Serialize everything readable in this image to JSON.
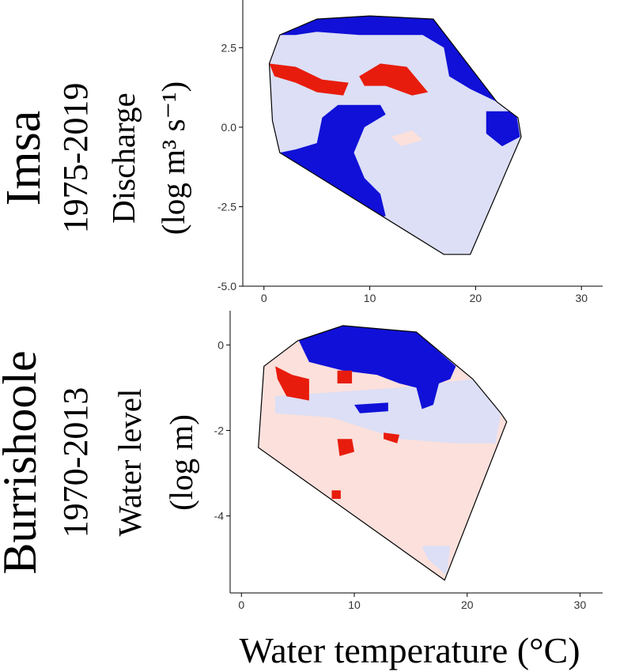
{
  "figure": {
    "xlabel": "Water temperature (°C)"
  },
  "colors": {
    "high": "#1010d8",
    "low": "#e81c0c",
    "pale_blue": "#dcdff5",
    "pale_red": "#fbe0dc"
  },
  "chart_data": [
    {
      "type": "heatmap",
      "site": "Imsa",
      "period": "1975-2019",
      "ylabel_line1": "Discharge",
      "ylabel_line2": "(log m³ s⁻¹)",
      "xlim": [
        -2,
        32
      ],
      "ylim": [
        -5,
        4
      ],
      "x_ticks": [
        "0",
        "10",
        "20",
        "30"
      ],
      "y_ticks": [
        "-5.0",
        "-2.5",
        "0.0",
        "2.5"
      ],
      "hull": [
        [
          0.5,
          2.0
        ],
        [
          1.5,
          2.9
        ],
        [
          5.0,
          3.4
        ],
        [
          10.0,
          3.5
        ],
        [
          16.0,
          3.4
        ],
        [
          22.0,
          0.8
        ],
        [
          24.0,
          0.3
        ],
        [
          24.3,
          -0.3
        ],
        [
          19.5,
          -4.0
        ],
        [
          17.0,
          -4.0
        ],
        [
          1.5,
          -0.8
        ],
        [
          0.8,
          0.2
        ]
      ],
      "background": "pale_blue",
      "regions": [
        {
          "color": "high",
          "points": [
            [
              1.5,
              2.9
            ],
            [
              5.0,
              3.4
            ],
            [
              10.0,
              3.5
            ],
            [
              16.0,
              3.4
            ],
            [
              22.0,
              0.8
            ],
            [
              19.5,
              1.2
            ],
            [
              17.5,
              1.6
            ],
            [
              17.0,
              2.5
            ],
            [
              15.0,
              2.9
            ],
            [
              9.0,
              2.9
            ],
            [
              5.0,
              3.0
            ],
            [
              3.0,
              2.9
            ],
            [
              1.5,
              2.9
            ]
          ]
        },
        {
          "color": "high",
          "points": [
            [
              5.0,
              -0.5
            ],
            [
              5.5,
              0.3
            ],
            [
              7.0,
              0.7
            ],
            [
              11.0,
              0.7
            ],
            [
              11.5,
              0.4
            ],
            [
              9.5,
              0.0
            ],
            [
              8.5,
              -0.8
            ],
            [
              9.5,
              -1.6
            ],
            [
              11.0,
              -2.1
            ],
            [
              11.5,
              -2.8
            ],
            [
              10.0,
              -2.8
            ],
            [
              8.0,
              -2.2
            ],
            [
              5.0,
              -1.6
            ],
            [
              1.5,
              -0.8
            ],
            [
              3.0,
              -0.7
            ]
          ]
        },
        {
          "color": "high",
          "points": [
            [
              21.0,
              0.5
            ],
            [
              23.8,
              0.5
            ],
            [
              24.2,
              -0.3
            ],
            [
              22.5,
              -0.6
            ],
            [
              21.0,
              -0.2
            ]
          ]
        },
        {
          "color": "low",
          "points": [
            [
              0.5,
              2.0
            ],
            [
              3.0,
              1.9
            ],
            [
              5.5,
              1.5
            ],
            [
              8.0,
              1.4
            ],
            [
              7.5,
              1.0
            ],
            [
              5.0,
              1.1
            ],
            [
              3.0,
              1.4
            ],
            [
              1.0,
              1.6
            ]
          ]
        },
        {
          "color": "low",
          "points": [
            [
              9.0,
              1.6
            ],
            [
              11.0,
              2.0
            ],
            [
              13.5,
              1.9
            ],
            [
              15.5,
              1.1
            ],
            [
              14.0,
              1.0
            ],
            [
              11.5,
              1.3
            ],
            [
              9.5,
              1.3
            ]
          ]
        },
        {
          "color": "pale_red",
          "points": [
            [
              12.0,
              -0.3
            ],
            [
              14.0,
              -0.1
            ],
            [
              15.0,
              -0.4
            ],
            [
              13.0,
              -0.6
            ]
          ]
        }
      ]
    },
    {
      "type": "heatmap",
      "site": "Burrishoole",
      "period": "1970-2013",
      "ylabel_line1": "Water level",
      "ylabel_line2": "(log m)",
      "xlim": [
        -1,
        32
      ],
      "ylim": [
        -5.8,
        0.8
      ],
      "x_ticks": [
        "0",
        "10",
        "20",
        "30"
      ],
      "y_ticks": [
        "-4",
        "-2",
        "0"
      ],
      "hull": [
        [
          1.5,
          -2.4
        ],
        [
          2.0,
          -0.5
        ],
        [
          5.0,
          0.1
        ],
        [
          9.0,
          0.45
        ],
        [
          15.5,
          0.3
        ],
        [
          20.5,
          -0.8
        ],
        [
          23.0,
          -1.6
        ],
        [
          23.5,
          -1.8
        ],
        [
          18.0,
          -5.5
        ],
        [
          1.5,
          -2.4
        ]
      ],
      "background": "pale_red",
      "regions": [
        {
          "color": "pale_blue",
          "points": [
            [
              3.0,
              -1.2
            ],
            [
              14.0,
              -1.0
            ],
            [
              20.5,
              -0.8
            ],
            [
              23.0,
              -1.6
            ],
            [
              22.5,
              -2.3
            ],
            [
              19.0,
              -2.3
            ],
            [
              14.0,
              -2.2
            ],
            [
              8.0,
              -1.7
            ],
            [
              3.0,
              -1.6
            ]
          ]
        },
        {
          "color": "high",
          "points": [
            [
              5.0,
              0.15
            ],
            [
              9.0,
              0.45
            ],
            [
              15.5,
              0.3
            ],
            [
              19.0,
              -0.5
            ],
            [
              18.5,
              -0.8
            ],
            [
              17.5,
              -0.9
            ],
            [
              17.0,
              -1.4
            ],
            [
              16.0,
              -1.5
            ],
            [
              15.5,
              -1.0
            ],
            [
              14.0,
              -0.9
            ],
            [
              12.0,
              -0.7
            ],
            [
              9.0,
              -0.6
            ],
            [
              6.0,
              -0.4
            ]
          ]
        },
        {
          "color": "high",
          "points": [
            [
              10.0,
              -1.4
            ],
            [
              13.0,
              -1.35
            ],
            [
              13.0,
              -1.55
            ],
            [
              10.5,
              -1.6
            ]
          ]
        },
        {
          "color": "low",
          "points": [
            [
              3.0,
              -0.5
            ],
            [
              4.5,
              -0.7
            ],
            [
              6.0,
              -0.8
            ],
            [
              6.0,
              -1.3
            ],
            [
              4.0,
              -1.2
            ],
            [
              3.2,
              -0.8
            ]
          ]
        },
        {
          "color": "low",
          "points": [
            [
              8.5,
              -0.6
            ],
            [
              9.8,
              -0.6
            ],
            [
              9.8,
              -0.9
            ],
            [
              8.5,
              -0.9
            ]
          ]
        },
        {
          "color": "low",
          "points": [
            [
              8.5,
              -2.2
            ],
            [
              9.8,
              -2.2
            ],
            [
              10.0,
              -2.5
            ],
            [
              8.7,
              -2.6
            ]
          ]
        },
        {
          "color": "low",
          "points": [
            [
              12.6,
              -2.05
            ],
            [
              14.0,
              -2.1
            ],
            [
              13.8,
              -2.3
            ],
            [
              12.6,
              -2.2
            ]
          ]
        },
        {
          "color": "low",
          "points": [
            [
              8.0,
              -3.4
            ],
            [
              8.8,
              -3.4
            ],
            [
              8.8,
              -3.6
            ],
            [
              8.0,
              -3.6
            ]
          ]
        },
        {
          "color": "pale_blue",
          "points": [
            [
              16.0,
              -4.7
            ],
            [
              18.5,
              -4.7
            ],
            [
              18.2,
              -5.4
            ],
            [
              16.5,
              -5.0
            ]
          ]
        }
      ]
    }
  ]
}
